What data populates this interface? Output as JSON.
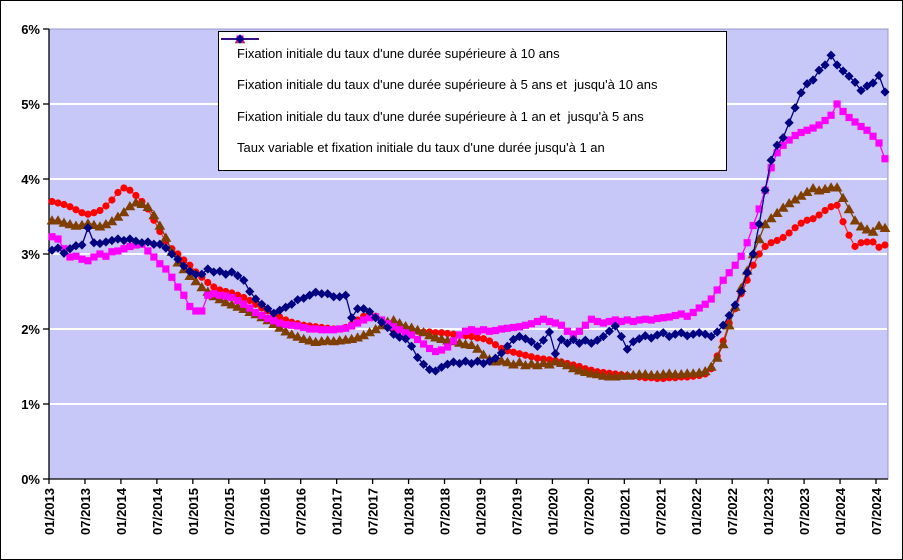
{
  "chart_data": {
    "type": "line",
    "title": "",
    "x_axis": {
      "frequency": "monthly",
      "start": "01/2013",
      "end": "08/2024",
      "tick_labels": [
        "01/2013",
        "07/2013",
        "01/2014",
        "07/2014",
        "01/2015",
        "07/2015",
        "01/2016",
        "07/2016",
        "01/2017",
        "07/2017",
        "01/2018",
        "07/2018",
        "01/2019",
        "07/2019",
        "01/2020",
        "07/2020",
        "01/2021",
        "07/2021",
        "01/2022",
        "07/2022",
        "01/2023",
        "07/2023",
        "01/2024",
        "07/2024"
      ]
    },
    "y_axis": {
      "tick_labels": [
        "0%",
        "1%",
        "2%",
        "3%",
        "4%",
        "5%",
        "6%"
      ],
      "min": 0,
      "max": 6,
      "unit": "%"
    },
    "grid": "horizontal-white-lines",
    "legend_position": "top-center-inside",
    "colors": {
      "plot_bg": "#C8C8F8",
      "gridline": "#FFFFFF",
      "axis": "#000000",
      "plot_border": "#9898C8"
    },
    "series": [
      {
        "id": "sup-10-ans",
        "label": "Fixation initiale du taux d'une durée supérieure à 10 ans",
        "color": "#FF0000",
        "line_color": "#FF3030",
        "marker": "circle",
        "values": [
          3.7,
          3.68,
          3.66,
          3.63,
          3.59,
          3.55,
          3.53,
          3.55,
          3.58,
          3.64,
          3.72,
          3.82,
          3.88,
          3.85,
          3.78,
          3.7,
          3.6,
          3.45,
          3.3,
          3.17,
          3.07,
          3.0,
          2.92,
          2.85,
          2.76,
          2.69,
          2.62,
          2.56,
          2.52,
          2.5,
          2.48,
          2.45,
          2.42,
          2.38,
          2.33,
          2.28,
          2.24,
          2.2,
          2.16,
          2.12,
          2.09,
          2.07,
          2.05,
          2.04,
          2.03,
          2.02,
          2.01,
          2.0,
          2.0,
          2.02,
          2.06,
          2.12,
          2.17,
          2.2,
          2.17,
          2.12,
          2.06,
          2.0,
          1.98,
          1.98,
          1.98,
          1.97,
          1.96,
          1.96,
          1.95,
          1.95,
          1.94,
          1.93,
          1.92,
          1.91,
          1.9,
          1.88,
          1.87,
          1.84,
          1.79,
          1.74,
          1.71,
          1.69,
          1.67,
          1.65,
          1.63,
          1.61,
          1.6,
          1.59,
          1.58,
          1.56,
          1.54,
          1.52,
          1.5,
          1.47,
          1.45,
          1.43,
          1.42,
          1.41,
          1.4,
          1.39,
          1.38,
          1.37,
          1.36,
          1.35,
          1.35,
          1.34,
          1.34,
          1.35,
          1.35,
          1.36,
          1.36,
          1.37,
          1.38,
          1.4,
          1.47,
          1.64,
          1.84,
          2.08,
          2.27,
          2.47,
          2.65,
          2.85,
          3.0,
          3.1,
          3.15,
          3.18,
          3.22,
          3.28,
          3.35,
          3.41,
          3.45,
          3.47,
          3.52,
          3.58,
          3.63,
          3.65,
          3.43,
          3.25,
          3.1,
          3.15,
          3.16,
          3.16,
          3.09,
          3.12
        ]
      },
      {
        "id": "5-10-ans",
        "label": "Fixation initiale du taux d'une durée supérieure à 5 ans et  jusqu'à 10 ans",
        "color": "#7F3F00",
        "line_color": "#7F3F00",
        "marker": "triangle",
        "values": [
          3.45,
          3.45,
          3.42,
          3.4,
          3.38,
          3.39,
          3.41,
          3.39,
          3.37,
          3.4,
          3.44,
          3.5,
          3.56,
          3.64,
          3.69,
          3.67,
          3.63,
          3.52,
          3.38,
          3.22,
          3.03,
          2.89,
          2.8,
          2.71,
          2.64,
          2.56,
          2.5,
          2.44,
          2.4,
          2.36,
          2.33,
          2.3,
          2.27,
          2.23,
          2.2,
          2.16,
          2.12,
          2.07,
          2.02,
          1.97,
          1.93,
          1.9,
          1.87,
          1.85,
          1.83,
          1.84,
          1.85,
          1.84,
          1.85,
          1.86,
          1.87,
          1.89,
          1.92,
          1.96,
          2.0,
          2.05,
          2.1,
          2.12,
          2.08,
          2.04,
          2.02,
          1.99,
          1.96,
          1.92,
          1.89,
          1.87,
          1.85,
          1.84,
          1.82,
          1.8,
          1.79,
          1.74,
          1.66,
          1.6,
          1.57,
          1.58,
          1.56,
          1.53,
          1.56,
          1.52,
          1.54,
          1.52,
          1.55,
          1.53,
          1.57,
          1.55,
          1.52,
          1.48,
          1.45,
          1.43,
          1.41,
          1.4,
          1.38,
          1.37,
          1.37,
          1.38,
          1.38,
          1.39,
          1.4,
          1.4,
          1.39,
          1.39,
          1.4,
          1.41,
          1.4,
          1.4,
          1.41,
          1.41,
          1.42,
          1.44,
          1.5,
          1.62,
          1.8,
          2.05,
          2.3,
          2.55,
          2.78,
          3.0,
          3.2,
          3.4,
          3.48,
          3.55,
          3.62,
          3.68,
          3.73,
          3.78,
          3.83,
          3.88,
          3.85,
          3.87,
          3.89,
          3.89,
          3.75,
          3.6,
          3.45,
          3.37,
          3.33,
          3.3,
          3.38,
          3.35
        ]
      },
      {
        "id": "1-5-ans",
        "label": "Fixation initiale du taux d'une durée supérieure à 1 an et  jusqu'à 5 ans",
        "color": "#FF00FF",
        "line_color": "#FF00FF",
        "marker": "square",
        "values": [
          3.23,
          3.2,
          3.07,
          2.96,
          2.97,
          2.93,
          2.91,
          2.96,
          3.0,
          2.97,
          3.03,
          3.04,
          3.07,
          3.1,
          3.12,
          3.13,
          3.04,
          2.96,
          2.87,
          2.8,
          2.69,
          2.56,
          2.45,
          2.3,
          2.24,
          2.24,
          2.45,
          2.47,
          2.45,
          2.44,
          2.42,
          2.38,
          2.33,
          2.28,
          2.22,
          2.18,
          2.14,
          2.11,
          2.08,
          2.06,
          2.05,
          2.04,
          2.02,
          2.0,
          2.0,
          1.99,
          1.99,
          1.99,
          2.0,
          2.01,
          2.04,
          2.08,
          2.12,
          2.15,
          2.16,
          2.12,
          2.07,
          2.03,
          1.99,
          1.95,
          1.92,
          1.86,
          1.8,
          1.74,
          1.7,
          1.72,
          1.76,
          1.84,
          1.92,
          1.97,
          1.99,
          1.97,
          1.99,
          1.97,
          1.98,
          2.0,
          2.01,
          2.02,
          2.03,
          2.05,
          2.07,
          2.1,
          2.13,
          2.1,
          2.08,
          2.05,
          1.97,
          1.93,
          1.97,
          2.05,
          2.13,
          2.1,
          2.08,
          2.1,
          2.12,
          2.1,
          2.12,
          2.1,
          2.12,
          2.13,
          2.12,
          2.14,
          2.15,
          2.16,
          2.18,
          2.2,
          2.17,
          2.22,
          2.28,
          2.33,
          2.4,
          2.52,
          2.65,
          2.75,
          2.85,
          2.97,
          3.15,
          3.38,
          3.6,
          3.85,
          4.15,
          4.35,
          4.45,
          4.52,
          4.58,
          4.62,
          4.65,
          4.68,
          4.72,
          4.78,
          4.85,
          5.0,
          4.9,
          4.82,
          4.76,
          4.7,
          4.65,
          4.57,
          4.48,
          4.27
        ]
      },
      {
        "id": "variable-1-an",
        "label": "Taux variable et fixation initiale du taux d'une durée jusqu'à 1 an",
        "color": "#000080",
        "line_color": "#000080",
        "marker": "diamond",
        "values": [
          3.05,
          3.08,
          3.01,
          3.07,
          3.11,
          3.12,
          3.35,
          3.15,
          3.14,
          3.16,
          3.18,
          3.2,
          3.18,
          3.2,
          3.17,
          3.15,
          3.16,
          3.13,
          3.13,
          3.08,
          3.0,
          2.93,
          2.84,
          2.77,
          2.73,
          2.73,
          2.8,
          2.76,
          2.77,
          2.73,
          2.76,
          2.71,
          2.65,
          2.5,
          2.4,
          2.33,
          2.27,
          2.21,
          2.25,
          2.29,
          2.33,
          2.39,
          2.41,
          2.45,
          2.49,
          2.47,
          2.47,
          2.43,
          2.43,
          2.45,
          2.15,
          2.27,
          2.27,
          2.23,
          2.15,
          2.09,
          2.02,
          1.93,
          1.89,
          1.87,
          1.77,
          1.62,
          1.53,
          1.46,
          1.44,
          1.49,
          1.53,
          1.56,
          1.54,
          1.57,
          1.54,
          1.57,
          1.54,
          1.57,
          1.61,
          1.68,
          1.77,
          1.86,
          1.9,
          1.87,
          1.83,
          1.77,
          1.85,
          1.96,
          1.67,
          1.86,
          1.81,
          1.86,
          1.81,
          1.85,
          1.81,
          1.85,
          1.9,
          1.97,
          2.04,
          1.9,
          1.73,
          1.83,
          1.87,
          1.91,
          1.88,
          1.92,
          1.95,
          1.9,
          1.93,
          1.95,
          1.91,
          1.93,
          1.95,
          1.93,
          1.9,
          1.96,
          2.05,
          2.18,
          2.32,
          2.5,
          2.75,
          3.0,
          3.4,
          3.85,
          4.25,
          4.45,
          4.55,
          4.75,
          4.95,
          5.15,
          5.27,
          5.32,
          5.45,
          5.52,
          5.65,
          5.52,
          5.44,
          5.37,
          5.29,
          5.18,
          5.24,
          5.28,
          5.38,
          5.16
        ]
      }
    ]
  }
}
